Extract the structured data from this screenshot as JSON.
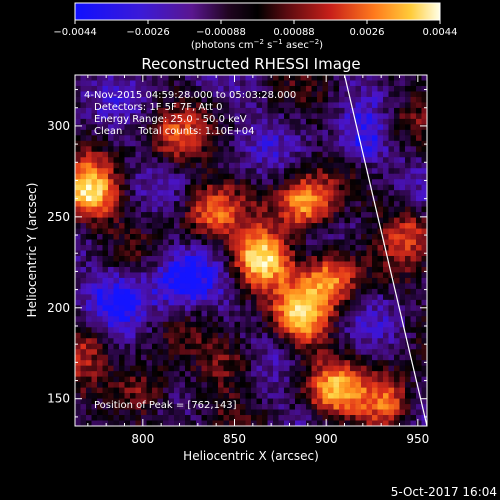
{
  "colorbar": {
    "ticks": [
      "−0.0044",
      "−0.0026",
      "−0.00088",
      "0.00088",
      "0.0026",
      "0.0044"
    ],
    "range": [
      -0.0044,
      0.0044
    ],
    "units_parts": [
      "(photons cm",
      "−2",
      " s",
      "−1",
      " asec",
      "−2",
      ")"
    ]
  },
  "chart_data": {
    "type": "heatmap",
    "title": "Reconstructed RHESSI Image",
    "xlabel": "Heliocentric X (arcsec)",
    "ylabel": "Heliocentric Y (arcsec)",
    "xlim": [
      763,
      955
    ],
    "ylim": [
      135,
      328
    ],
    "xticks": [
      800,
      850,
      900,
      950
    ],
    "yticks": [
      150,
      200,
      250,
      300
    ],
    "colormap": [
      "#1414ff",
      "#4a14c8",
      "#400a6a",
      "#000000",
      "#7a0f1a",
      "#e0301a",
      "#ff8a1c",
      "#ffd040",
      "#ffffe0"
    ],
    "annotations": [
      "4-Nov-2015 04:59:28.000 to 05:03:28.000",
      "Detectors: 1F 5F 7F, Att 0",
      "Energy Range: 25.0 - 50.0 keV",
      "Clean     Total counts: 1.10E+04"
    ],
    "peak_label": "Position of Peak = [762,143]",
    "peak": [
      762,
      143
    ],
    "limb_line": [
      [
        910,
        328
      ],
      [
        955,
        135
      ]
    ],
    "sources": [
      {
        "x": 864,
        "y": 227,
        "amp": 1.0
      },
      {
        "x": 770,
        "y": 263,
        "amp": 0.95
      },
      {
        "x": 889,
        "y": 257,
        "amp": 0.85
      },
      {
        "x": 887,
        "y": 195,
        "amp": 0.78
      },
      {
        "x": 903,
        "y": 216,
        "amp": 0.7
      },
      {
        "x": 905,
        "y": 155,
        "amp": 0.65
      },
      {
        "x": 934,
        "y": 148,
        "amp": 0.7
      },
      {
        "x": 800,
        "y": 153,
        "amp": 0.5
      },
      {
        "x": 836,
        "y": 253,
        "amp": 0.55
      },
      {
        "x": 817,
        "y": 293,
        "amp": 0.45
      },
      {
        "x": 946,
        "y": 243,
        "amp": 0.45
      },
      {
        "x": 943,
        "y": 303,
        "amp": 0.35
      },
      {
        "x": 848,
        "y": 170,
        "amp": 0.35
      },
      {
        "x": 766,
        "y": 180,
        "amp": 0.35
      },
      {
        "x": 790,
        "y": 205,
        "amp": -0.35
      },
      {
        "x": 820,
        "y": 215,
        "amp": -0.45
      },
      {
        "x": 920,
        "y": 290,
        "amp": -0.35
      }
    ]
  },
  "footer_date": "5-Oct-2017 16:04"
}
